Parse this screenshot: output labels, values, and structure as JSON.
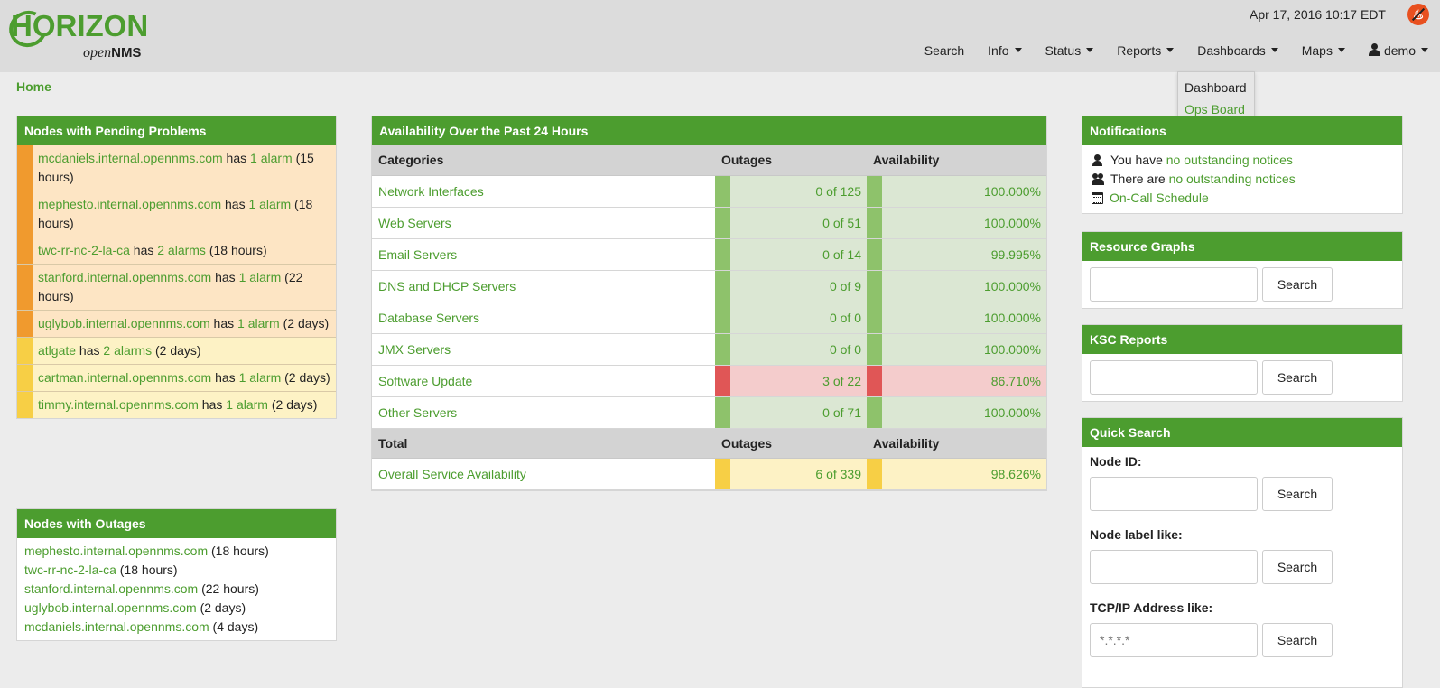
{
  "header": {
    "logo_main": "HORIZON",
    "logo_sub_open": "open",
    "logo_sub_nms": "NMS",
    "datetime": "Apr 17, 2016 10:17 EDT",
    "nav": [
      "Search",
      "Info",
      "Status",
      "Reports",
      "Dashboards",
      "Maps",
      "demo"
    ],
    "dropdown": [
      "Dashboard",
      "Ops Board"
    ]
  },
  "breadcrumb": "Home",
  "pending": {
    "title": "Nodes with Pending Problems",
    "rows": [
      {
        "node": "mcdaniels.internal.opennms.com",
        "has": " has ",
        "alarms": "1 alarm",
        "time": "(15 hours)",
        "severity": "major"
      },
      {
        "node": "mephesto.internal.opennms.com",
        "has": " has ",
        "alarms": "1 alarm",
        "time": "(18 hours)",
        "severity": "major"
      },
      {
        "node": "twc-rr-nc-2-la-ca",
        "has": " has ",
        "alarms": "2 alarms",
        "time": "(18 hours)",
        "severity": "major"
      },
      {
        "node": "stanford.internal.opennms.com",
        "has": " has ",
        "alarms": "1 alarm",
        "time": "(22 hours)",
        "severity": "major"
      },
      {
        "node": "uglybob.internal.opennms.com",
        "has": " has ",
        "alarms": "1 alarm",
        "time": "(2 days)",
        "severity": "major"
      },
      {
        "node": "atlgate",
        "has": " has ",
        "alarms": "2 alarms",
        "time": "(2 days)",
        "severity": "minor"
      },
      {
        "node": "cartman.internal.opennms.com",
        "has": " has ",
        "alarms": "1 alarm",
        "time": "(2 days)",
        "severity": "minor"
      },
      {
        "node": "timmy.internal.opennms.com",
        "has": " has ",
        "alarms": "1 alarm",
        "time": "(2 days)",
        "severity": "minor"
      }
    ]
  },
  "outages": {
    "title": "Nodes with Outages",
    "rows": [
      {
        "node": "mephesto.internal.opennms.com",
        "time": "(18 hours)"
      },
      {
        "node": "twc-rr-nc-2-la-ca",
        "time": "(18 hours)"
      },
      {
        "node": "stanford.internal.opennms.com",
        "time": "(22 hours)"
      },
      {
        "node": "uglybob.internal.opennms.com",
        "time": "(2 days)"
      },
      {
        "node": "mcdaniels.internal.opennms.com",
        "time": "(4 days)"
      }
    ]
  },
  "availability": {
    "title": "Availability Over the Past 24 Hours",
    "headers": [
      "Categories",
      "Outages",
      "Availability"
    ],
    "rows": [
      {
        "category": "Network Interfaces",
        "outages": "0 of 125",
        "availability": "100.000%",
        "status": "ok"
      },
      {
        "category": "Web Servers",
        "outages": "0 of 51",
        "availability": "100.000%",
        "status": "ok"
      },
      {
        "category": "Email Servers",
        "outages": "0 of 14",
        "availability": "99.995%",
        "status": "ok"
      },
      {
        "category": "DNS and DHCP Servers",
        "outages": "0 of 9",
        "availability": "100.000%",
        "status": "ok"
      },
      {
        "category": "Database Servers",
        "outages": "0 of 0",
        "availability": "100.000%",
        "status": "ok"
      },
      {
        "category": "JMX Servers",
        "outages": "0 of 0",
        "availability": "100.000%",
        "status": "ok"
      },
      {
        "category": "Software Update",
        "outages": "3 of 22",
        "availability": "86.710%",
        "status": "bad"
      },
      {
        "category": "Other Servers",
        "outages": "0 of 71",
        "availability": "100.000%",
        "status": "ok"
      }
    ],
    "total_headers": [
      "Total",
      "Outages",
      "Availability"
    ],
    "total": {
      "category": "Overall Service Availability",
      "outages": "6 of 339",
      "availability": "98.626%",
      "status": "warn"
    }
  },
  "notifications": {
    "title": "Notifications",
    "line1_prefix": "You have ",
    "line1_link": "no outstanding notices",
    "line2_prefix": "There are ",
    "line2_link": "no outstanding notices",
    "line3_link": "On-Call Schedule"
  },
  "resource_graphs": {
    "title": "Resource Graphs",
    "button": "Search",
    "placeholder": ""
  },
  "ksc_reports": {
    "title": "KSC Reports",
    "button": "Search",
    "placeholder": ""
  },
  "quick_search": {
    "title": "Quick Search",
    "node_id_label": "Node ID:",
    "node_label_label": "Node label like:",
    "ip_label": "TCP/IP Address like:",
    "ip_placeholder": "*.*.*.*",
    "button": "Search"
  },
  "colors": {
    "brand_green": "#4c9d2f",
    "major": "#f09a2e",
    "minor": "#f7cf45",
    "ok": "#8ec26b",
    "critical": "#e05656"
  }
}
